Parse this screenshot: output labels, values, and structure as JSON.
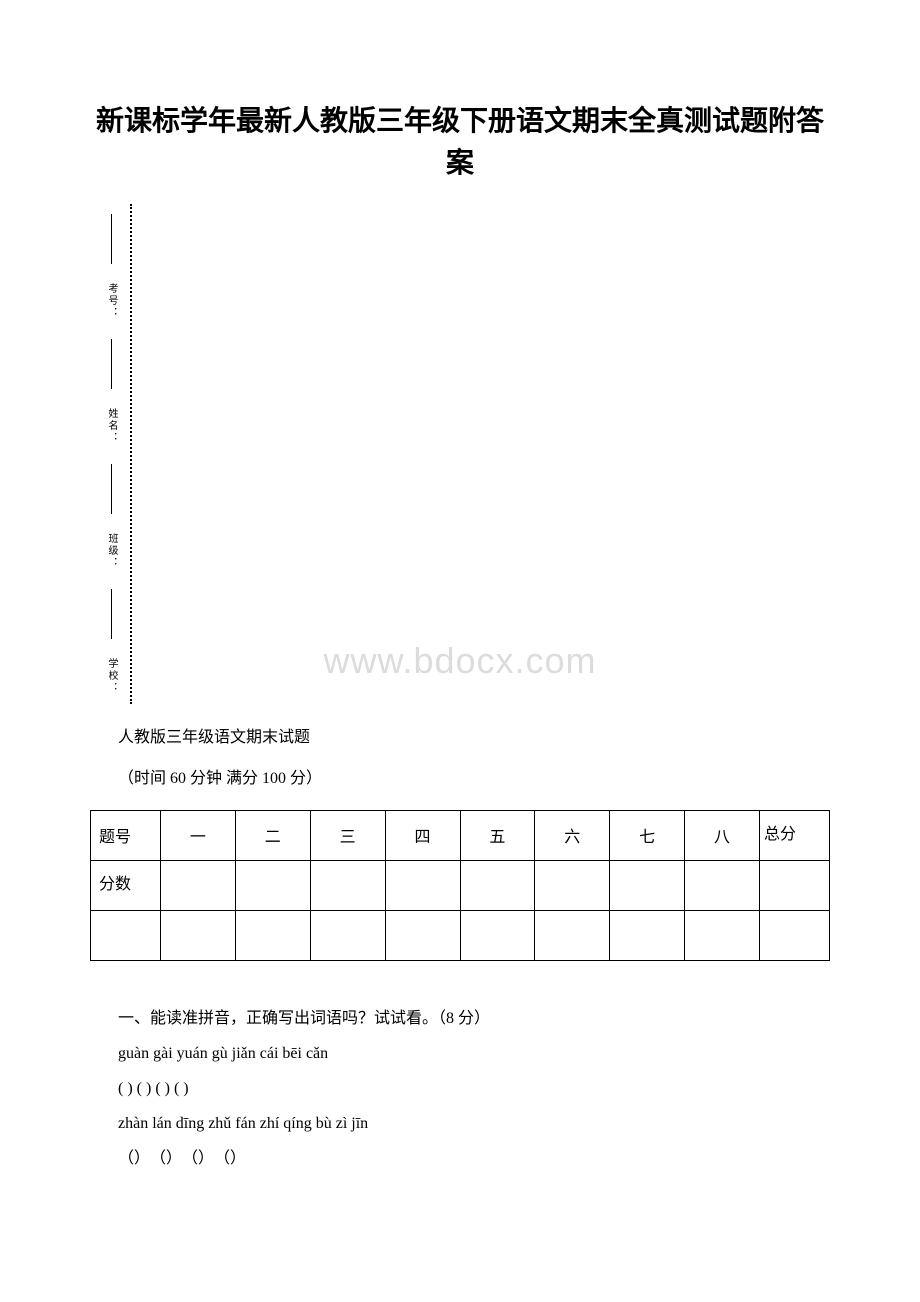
{
  "title": "新课标学年最新人教版三年级下册语文期末全真测试题附答案",
  "binding": {
    "labels": [
      "考号：",
      "姓名：",
      "班级：",
      "学校："
    ]
  },
  "watermark": "www.bdocx.com",
  "subtitle": "人教版三年级语文期末试题",
  "timeScore": "（时间 60 分钟 满分 100 分）",
  "scoreTable": {
    "headerFirst": "题号",
    "columns": [
      "一",
      "二",
      "三",
      "四",
      "五",
      "六",
      "七",
      "八"
    ],
    "headerLast": "总分",
    "scoreLabel": "分数"
  },
  "section1": {
    "heading": "一、能读准拼音，正确写出词语吗？试试看。（8 分）",
    "pinyin1": "guàn gài yuán gù jiǎn cái bēi cǎn",
    "blanks1": "( ) ( ) ( ) ( )",
    "pinyin2": "zhàn lán dīng zhǔ fán zhí qíng bù zì jīn",
    "blanks2": "（）　（）　（）　（）"
  },
  "colors": {
    "text": "#000000",
    "background": "#ffffff",
    "watermark": "#dcdcdc",
    "border": "#000000"
  }
}
